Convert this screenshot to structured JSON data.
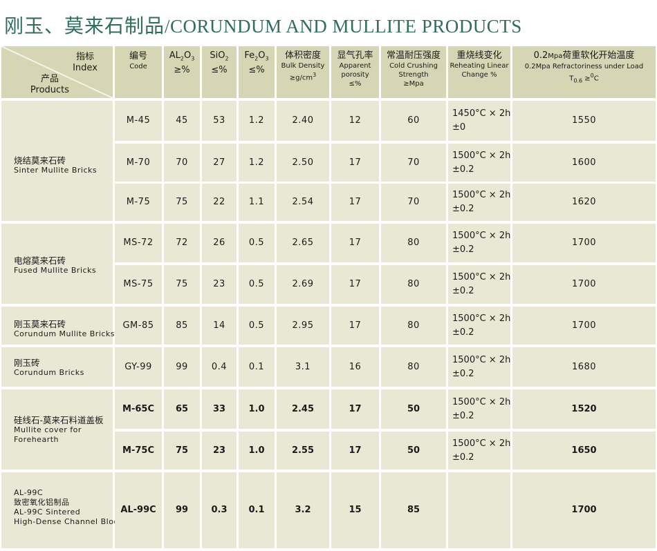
{
  "title": {
    "cn": "刚玉、莫来石制品",
    "en": "/CORUNDUM AND MULLITE PRODUCTS"
  },
  "header": {
    "index_cn": "指标",
    "index_en": "Index",
    "products_cn": "产品",
    "products_en": "Products",
    "code_cn": "编号",
    "code_en": "Code",
    "al2o3_a": "AL",
    "al2o3_b": "2",
    "al2o3_c": "O",
    "al2o3_d": "3",
    "al2o3_unit": "≥%",
    "sio2_a": "SiO",
    "sio2_b": "2",
    "sio2_unit": "≤%",
    "fe2o3_a": "Fe",
    "fe2o3_b": "2",
    "fe2o3_c": "O",
    "fe2o3_d": "3",
    "fe2o3_unit": "≤%",
    "bulk_cn": "体积密度",
    "bulk_en": "Bulk Density",
    "bulk_unit_a": "≥g/cm",
    "bulk_unit_b": "3",
    "por_cn": "显气孔率",
    "por_en1": "Apparent",
    "por_en2": "porosity",
    "por_unit": "≤%",
    "ccs_cn": "常温耐压强度",
    "ccs_en1": "Cold Crushing",
    "ccs_en2": "Strength",
    "ccs_unit": "≥Mpa",
    "reh_cn": "重烧线变化",
    "reh_en1": "Reheating Linear",
    "reh_en2": "Change  %",
    "rul_cn_a": "0.2",
    "rul_cn_b": "Mpa",
    "rul_cn_c": "荷重软化开始温度",
    "rul_en": "0.2Mpa Refractoriness under Load",
    "rul_t": "T",
    "rul_t_sub": "0.6",
    "rul_t_b": " ≥",
    "rul_t_sup": "0",
    "rul_t_c": "C"
  },
  "groups": [
    {
      "cn": "烧结莫来石砖",
      "en": [
        "Sinter Mullite Bricks"
      ]
    },
    {
      "cn": "电熔莫来石砖",
      "en": [
        "Fused Mullite Bricks"
      ]
    },
    {
      "cn": "刚玉莫来石砖",
      "en": [
        "Corundum Mullite Bricks"
      ]
    },
    {
      "cn": "刚玉砖",
      "en": [
        "Corundum Bricks"
      ]
    },
    {
      "cn": "硅线石-莫来石料道盖板",
      "en": [
        "Mullite cover for",
        "Forehearth"
      ]
    },
    {
      "cn": "",
      "en": [
        "AL-99C",
        "致密氧化铝制品",
        "AL-99C Sintered",
        "High-Dense Channel Block"
      ]
    }
  ],
  "rows": [
    {
      "code": "M-45",
      "al": "45",
      "si": "53",
      "fe": "1.2",
      "bulk": "2.40",
      "por": "12",
      "ccs": "60",
      "reh1": "1450",
      "reh2": "±0",
      "rul": "1550"
    },
    {
      "code": "M-70",
      "al": "70",
      "si": "27",
      "fe": "1.2",
      "bulk": "2.50",
      "por": "17",
      "ccs": "70",
      "reh1": "1500",
      "reh2": "±0.2",
      "rul": "1600"
    },
    {
      "code": "M-75",
      "al": "75",
      "si": "22",
      "fe": "1.1",
      "bulk": "2.54",
      "por": "17",
      "ccs": "70",
      "reh1": "1500",
      "reh2": "±0.2",
      "rul": "1620"
    },
    {
      "code": "MS-72",
      "al": "72",
      "si": "26",
      "fe": "0.5",
      "bulk": "2.65",
      "por": "17",
      "ccs": "80",
      "reh1": "1500",
      "reh2": "±0.2",
      "rul": "1700"
    },
    {
      "code": "MS-75",
      "al": "75",
      "si": "23",
      "fe": "0.5",
      "bulk": "2.69",
      "por": "17",
      "ccs": "80",
      "reh1": "1500",
      "reh2": "±0.2",
      "rul": "1700"
    },
    {
      "code": "GM-85",
      "al": "85",
      "si": "14",
      "fe": "0.5",
      "bulk": "2.95",
      "por": "17",
      "ccs": "80",
      "reh1": "1500",
      "reh2": "±0.2",
      "rul": "1700"
    },
    {
      "code": "GY-99",
      "al": "99",
      "si": "0.4",
      "fe": "0.1",
      "bulk": "3.1",
      "por": "16",
      "ccs": "80",
      "reh1": "1500",
      "reh2": "±0.2",
      "rul": "1680"
    },
    {
      "code": "M-65C",
      "al": "65",
      "si": "33",
      "fe": "1.0",
      "bulk": "2.45",
      "por": "17",
      "ccs": "50",
      "reh1": "1500",
      "reh2": "±0.2",
      "rul": "1520"
    },
    {
      "code": "M-75C",
      "al": "75",
      "si": "23",
      "fe": "1.0",
      "bulk": "2.55",
      "por": "17",
      "ccs": "50",
      "reh1": "1500",
      "reh2": "±0.2",
      "rul": "1650"
    },
    {
      "code": "AL-99C",
      "al": "99",
      "si": "0.3",
      "fe": "0.1",
      "bulk": "3.2",
      "por": "15",
      "ccs": "85",
      "reh1": "",
      "reh2": "",
      "rul": "1700"
    }
  ],
  "reh_unit_a": "°C × 2h",
  "colors": {
    "cell": "#e8e8d5",
    "header": "#d6d6b4",
    "title": "#2f6d5d"
  }
}
